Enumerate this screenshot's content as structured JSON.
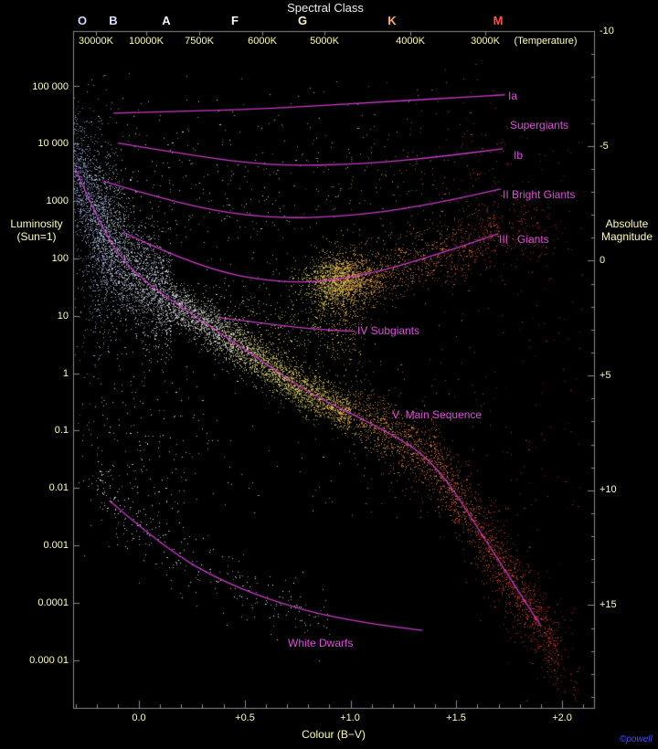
{
  "style": {
    "colors": {
      "background": "#000000",
      "frame": "#8a8a8a",
      "axis_text": "#ffffa8",
      "class_label": "#e04ce0",
      "curve": "#cc39cc",
      "title": "#ededed",
      "credit": "#4d4dff"
    }
  },
  "title": {
    "text": "Spectral Class"
  },
  "top_axis": {
    "classes": [
      {
        "label": "O",
        "bv": -0.268,
        "color": "#ccd8ff"
      },
      {
        "label": "B",
        "bv": -0.121,
        "color": "#dde4ff"
      },
      {
        "label": "A",
        "bv": 0.13,
        "color": "#f4f4ff"
      },
      {
        "label": "F",
        "bv": 0.454,
        "color": "#ffffff"
      },
      {
        "label": "G",
        "bv": 0.773,
        "color": "#fff4c8"
      },
      {
        "label": "K",
        "bv": 1.197,
        "color": "#ffb066"
      },
      {
        "label": "M",
        "bv": 1.698,
        "color": "#ff5340"
      }
    ],
    "temperatures": [
      {
        "label": "30000K",
        "bv": -0.203
      },
      {
        "label": "10000K",
        "bv": 0.035
      },
      {
        "label": "7500K",
        "bv": 0.285
      },
      {
        "label": "6000K",
        "bv": 0.583
      },
      {
        "label": "5000K",
        "bv": 0.877
      },
      {
        "label": "4000K",
        "bv": 1.283
      },
      {
        "label": "3000K",
        "bv": 1.637
      },
      {
        "label": "(Temperature)",
        "bv": 1.922
      }
    ]
  },
  "left_axis": {
    "title1": "Luminosity",
    "title2": "(Sun=1)",
    "ticks": [
      {
        "label": "100 000",
        "logL": 5
      },
      {
        "label": "10 000",
        "logL": 4
      },
      {
        "label": "1000",
        "logL": 3
      },
      {
        "label": "100",
        "logL": 2
      },
      {
        "label": "10",
        "logL": 1
      },
      {
        "label": "1",
        "logL": 0
      },
      {
        "label": "0.1",
        "logL": -1
      },
      {
        "label": "0.01",
        "logL": -2
      },
      {
        "label": "0.001",
        "logL": -3
      },
      {
        "label": "0.0001",
        "logL": -4
      },
      {
        "label": "0.000 01",
        "logL": -5
      }
    ]
  },
  "right_axis": {
    "title1": "Absolute",
    "title2": "Magnitude",
    "ticks": [
      {
        "label": "-10",
        "mag": -10
      },
      {
        "label": "-5",
        "mag": -5
      },
      {
        "label": "0",
        "mag": 0
      },
      {
        "label": "+5",
        "mag": 5
      },
      {
        "label": "+10",
        "mag": 10
      },
      {
        "label": "+15",
        "mag": 15
      }
    ]
  },
  "bottom_axis": {
    "title": "Colour (B−V)",
    "ticks": [
      {
        "label": "0.0",
        "bv": 0
      },
      {
        "label": "+0.5",
        "bv": 0.5
      },
      {
        "label": "+1.0",
        "bv": 1
      },
      {
        "label": "+1.5",
        "bv": 1.5
      },
      {
        "label": "+2.0",
        "bv": 2
      }
    ]
  },
  "class_labels": {
    "ia": "Ia",
    "supergiants": "Supergiants",
    "ib": "Ib",
    "ii": "II Bright Giants",
    "iii": "III   Giants",
    "iv": "IV Subgiants",
    "v": "V  Main Sequence",
    "wd": "White Dwarfs"
  },
  "credit": {
    "text": "©powell"
  },
  "chart_data": {
    "type": "scatter",
    "title": "Hertzsprung-Russell diagram: Colour (B−V) vs Luminosity (Sun=1) / Absolute Magnitude",
    "x_range": [
      -0.311,
      2.151
    ],
    "logL_range": [
      -5.83,
      5.96
    ],
    "mag_range": [
      -10,
      19.6
    ],
    "seed": 1234,
    "curves": [
      {
        "name": "Ia",
        "points": [
          [
            -0.12,
            4.53
          ],
          [
            0.21,
            4.56
          ],
          [
            0.64,
            4.61
          ],
          [
            1.07,
            4.71
          ],
          [
            1.5,
            4.8
          ],
          [
            1.73,
            4.85
          ]
        ]
      },
      {
        "name": "Ib",
        "points": [
          [
            -0.1,
            4.01
          ],
          [
            0.29,
            3.77
          ],
          [
            0.64,
            3.61
          ],
          [
            1.07,
            3.64
          ],
          [
            1.42,
            3.77
          ],
          [
            1.72,
            3.91
          ]
        ]
      },
      {
        "name": "II",
        "points": [
          [
            -0.17,
            3.35
          ],
          [
            0.21,
            2.92
          ],
          [
            0.64,
            2.68
          ],
          [
            1.07,
            2.76
          ],
          [
            1.42,
            2.97
          ],
          [
            1.71,
            3.21
          ]
        ]
      },
      {
        "name": "III",
        "points": [
          [
            -0.07,
            2.45
          ],
          [
            0.29,
            1.81
          ],
          [
            0.73,
            1.54
          ],
          [
            1.07,
            1.7
          ],
          [
            1.42,
            2.08
          ],
          [
            1.7,
            2.43
          ]
        ]
      },
      {
        "name": "IV",
        "points": [
          [
            0.38,
            0.97
          ],
          [
            0.64,
            0.84
          ],
          [
            0.86,
            0.76
          ],
          [
            1.02,
            0.73
          ]
        ]
      },
      {
        "name": "V",
        "points": [
          [
            -0.3,
            3.56
          ],
          [
            -0.17,
            2.45
          ],
          [
            -0.02,
            1.71
          ],
          [
            0.3,
            0.9
          ],
          [
            0.58,
            0.22
          ],
          [
            0.81,
            -0.37
          ],
          [
            1.15,
            -0.96
          ],
          [
            1.4,
            -1.54
          ],
          [
            1.64,
            -2.92
          ],
          [
            1.9,
            -4.4
          ]
        ]
      },
      {
        "name": "WD",
        "points": [
          [
            -0.14,
            -2.22
          ],
          [
            0.12,
            -3.05
          ],
          [
            0.42,
            -3.68
          ],
          [
            0.77,
            -4.13
          ],
          [
            1.07,
            -4.35
          ],
          [
            1.34,
            -4.48
          ]
        ]
      }
    ],
    "populations": [
      {
        "name": "ms-hot-band",
        "type": "band",
        "curve": "V",
        "bv": [
          -0.31,
          0.15
        ],
        "sigma": 0.5,
        "count": 3000
      },
      {
        "name": "b-star-column",
        "type": "blob",
        "center": [
          -0.17,
          2.3
        ],
        "sigma": [
          0.06,
          1.05
        ],
        "count": 800
      },
      {
        "name": "ms-mid-band",
        "type": "band",
        "curve": "V",
        "bv": [
          0.15,
          1.0
        ],
        "sigma": 0.2,
        "count": 3500
      },
      {
        "name": "ms-cool-band",
        "type": "band",
        "curve": "V",
        "bv": [
          1.0,
          1.98
        ],
        "sigma": 0.28,
        "count": 2200
      },
      {
        "name": "ms-cool-halo",
        "type": "band",
        "curve": "V",
        "bv": [
          1.2,
          2.08
        ],
        "sigma": 0.55,
        "count": 500
      },
      {
        "name": "subgiant-band",
        "type": "band",
        "curve": "IV",
        "bv": [
          0.3,
          1.05
        ],
        "sigma": 0.35,
        "count": 450
      },
      {
        "name": "clump-stem",
        "type": "blob",
        "center": [
          0.95,
          1.05
        ],
        "sigma": [
          0.07,
          0.4
        ],
        "count": 250
      },
      {
        "name": "giant-clump",
        "type": "blob",
        "center": [
          0.96,
          1.62
        ],
        "sigma": [
          0.09,
          0.22
        ],
        "count": 1800
      },
      {
        "name": "giant-branch",
        "type": "band",
        "curve": "III",
        "bv": [
          0.85,
          1.7
        ],
        "sigma": 0.28,
        "count": 1100
      },
      {
        "name": "giant-tip",
        "type": "blob",
        "center": [
          1.8,
          2.45
        ],
        "sigma": [
          0.13,
          0.3
        ],
        "count": 220
      },
      {
        "name": "supergiants-ia",
        "type": "band",
        "curve": "Ia",
        "bv": [
          -0.1,
          1.7
        ],
        "sigma": 0.3,
        "count": 60
      },
      {
        "name": "supergiants-ib",
        "type": "band",
        "curve": "Ib",
        "bv": [
          -0.15,
          1.75
        ],
        "sigma": 0.45,
        "count": 180
      },
      {
        "name": "bright-giants-ii",
        "type": "band",
        "curve": "II",
        "bv": [
          -0.15,
          1.72
        ],
        "sigma": 0.4,
        "count": 200
      },
      {
        "name": "white-dwarfs",
        "type": "band",
        "curve": "WD",
        "bv": [
          -0.2,
          0.9
        ],
        "sigma": 0.3,
        "count": 300,
        "bias": 1.5,
        "palette": "pale"
      },
      {
        "name": "faint-blue-sparse",
        "type": "blob",
        "center": [
          0.0,
          -1.2
        ],
        "sigma": [
          0.18,
          0.9
        ],
        "count": 150,
        "palette": "pale"
      },
      {
        "name": "field-stars",
        "type": "uniform",
        "bv": [
          -0.3,
          2.1
        ],
        "logL": [
          -2.5,
          4.3
        ],
        "count": 600
      }
    ],
    "color_scale": [
      {
        "bv": -0.31,
        "color": "#a3bcff"
      },
      {
        "bv": -0.1,
        "color": "#dbe4ff"
      },
      {
        "bv": 0.15,
        "color": "#f5f5ff"
      },
      {
        "bv": 0.4,
        "color": "#fffce0"
      },
      {
        "bv": 0.62,
        "color": "#fff483"
      },
      {
        "bv": 0.85,
        "color": "#ffe45c"
      },
      {
        "bv": 1.0,
        "color": "#ffc94e"
      },
      {
        "bv": 1.2,
        "color": "#ffa342"
      },
      {
        "bv": 1.45,
        "color": "#ff7a33"
      },
      {
        "bv": 1.7,
        "color": "#ff4a2d"
      },
      {
        "bv": 2.1,
        "color": "#ff2d3a"
      }
    ]
  }
}
